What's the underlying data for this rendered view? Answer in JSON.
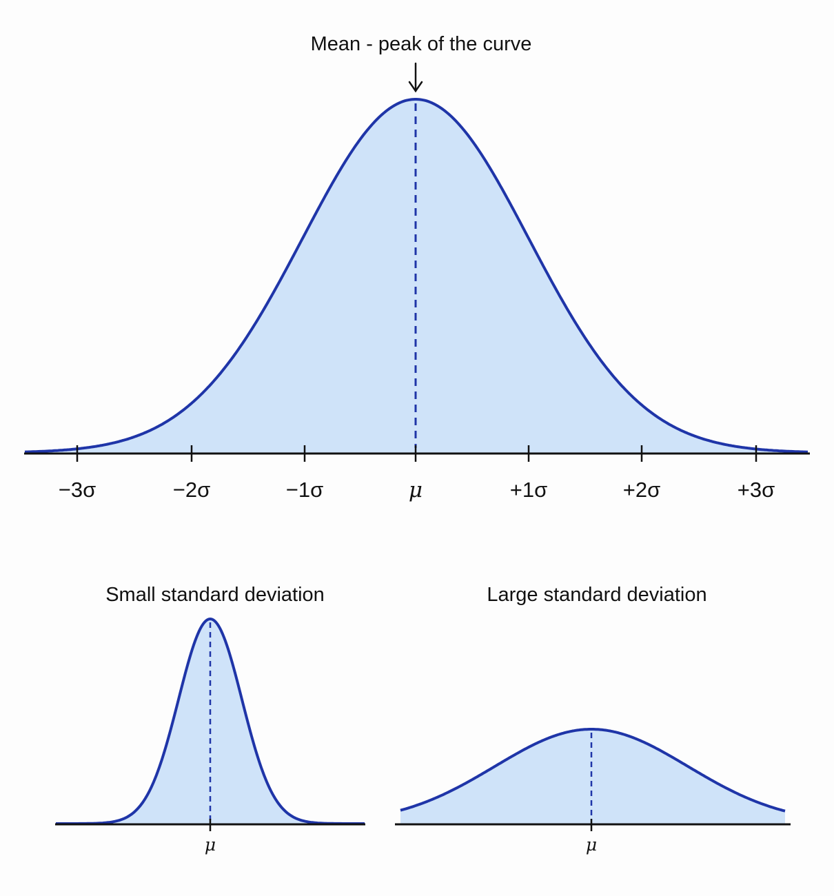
{
  "main_chart": {
    "annotation": "Mean - peak of the curve",
    "tick_labels": [
      "−3σ",
      "−2σ",
      "−1σ",
      "μ",
      "+1σ",
      "+2σ",
      "+3σ"
    ],
    "sigma": 1,
    "x_range": [
      -3.5,
      3.5
    ]
  },
  "small_sd": {
    "title": "Small standard deviation",
    "mean_label": "μ"
  },
  "large_sd": {
    "title": "Large standard deviation",
    "mean_label": "μ"
  },
  "colors": {
    "curve": "#1f35a8",
    "fill": "#cfe3f9",
    "axis": "#111111",
    "mean_line": "#1f35a8"
  }
}
